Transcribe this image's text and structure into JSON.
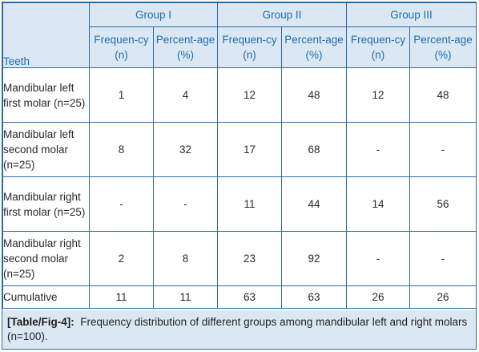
{
  "table": {
    "teeth_header": "Teeth",
    "groups": [
      "Group I",
      "Group II",
      "Group III"
    ],
    "freq_header": "Frequen-cy (n)",
    "pct_header": "Percent-age (%)",
    "rows": [
      {
        "label": "Mandibular left first molar (n=25)",
        "values": [
          "1",
          "4",
          "12",
          "48",
          "12",
          "48"
        ]
      },
      {
        "label": "Mandibular left second molar (n=25)",
        "values": [
          "8",
          "32",
          "17",
          "68",
          "-",
          "-"
        ]
      },
      {
        "label": "Mandibular right first molar (n=25)",
        "values": [
          "-",
          "-",
          "11",
          "44",
          "14",
          "56"
        ]
      },
      {
        "label": "Mandibular right second molar (n=25)",
        "values": [
          "2",
          "8",
          "23",
          "92",
          "-",
          "-"
        ]
      },
      {
        "label": "Cumulative",
        "values": [
          "11",
          "11",
          "63",
          "63",
          "26",
          "26"
        ]
      }
    ]
  },
  "caption": {
    "tag": "[Table/Fig-4]:",
    "text": "Frequency distribution of different groups among mandibular left and right molars (n=100)."
  },
  "colors": {
    "header_bg": "#dbe8f4",
    "header_text": "#1f6cb0",
    "border": "#2c6aa6"
  }
}
